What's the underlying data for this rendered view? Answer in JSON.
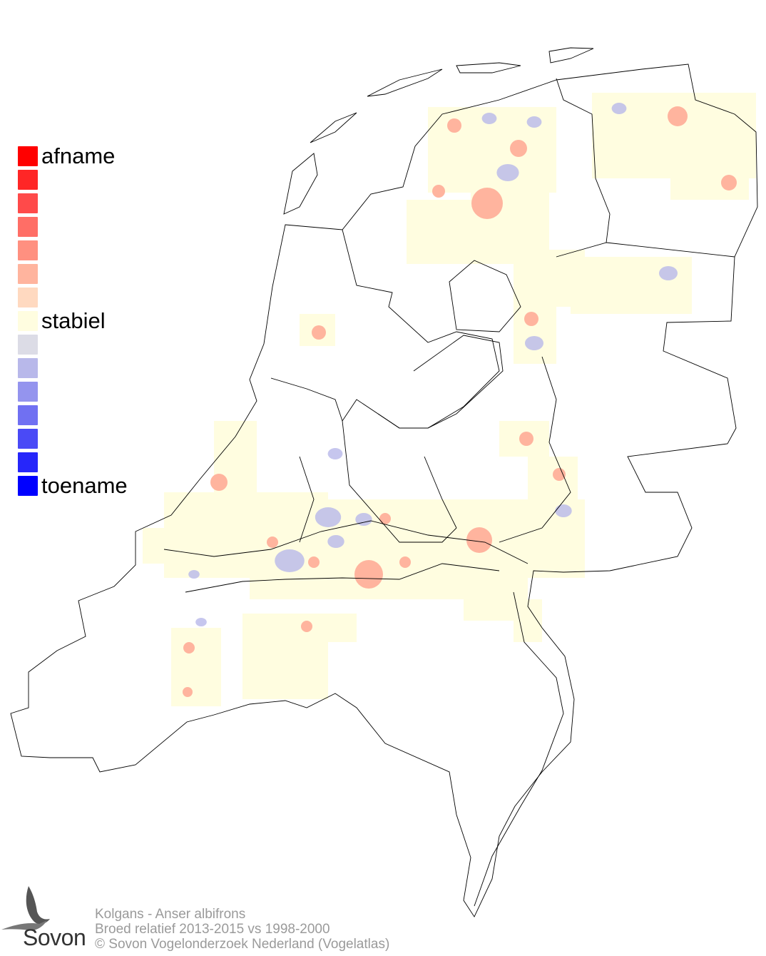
{
  "legend": {
    "labels": {
      "top": "afname",
      "middle": "stabiel",
      "bottom": "toename"
    },
    "colors": [
      "#ff0000",
      "#ff2626",
      "#ff4a4a",
      "#ff6e66",
      "#ff9080",
      "#ffb49e",
      "#ffd9c0",
      "#fffde0",
      "#dcdce6",
      "#b8b8ea",
      "#9494ee",
      "#7070f2",
      "#4a4af6",
      "#2626fa",
      "#0000ff"
    ]
  },
  "footer": {
    "species": "Kolgans - Anser albifrons",
    "subtitle": "Broed relatief 2013-2015 vs 1998-2000",
    "copyright": "© Sovon Vogelonderzoek Nederland (Vogelatlas)"
  },
  "logo": {
    "text": "Sovon"
  }
}
